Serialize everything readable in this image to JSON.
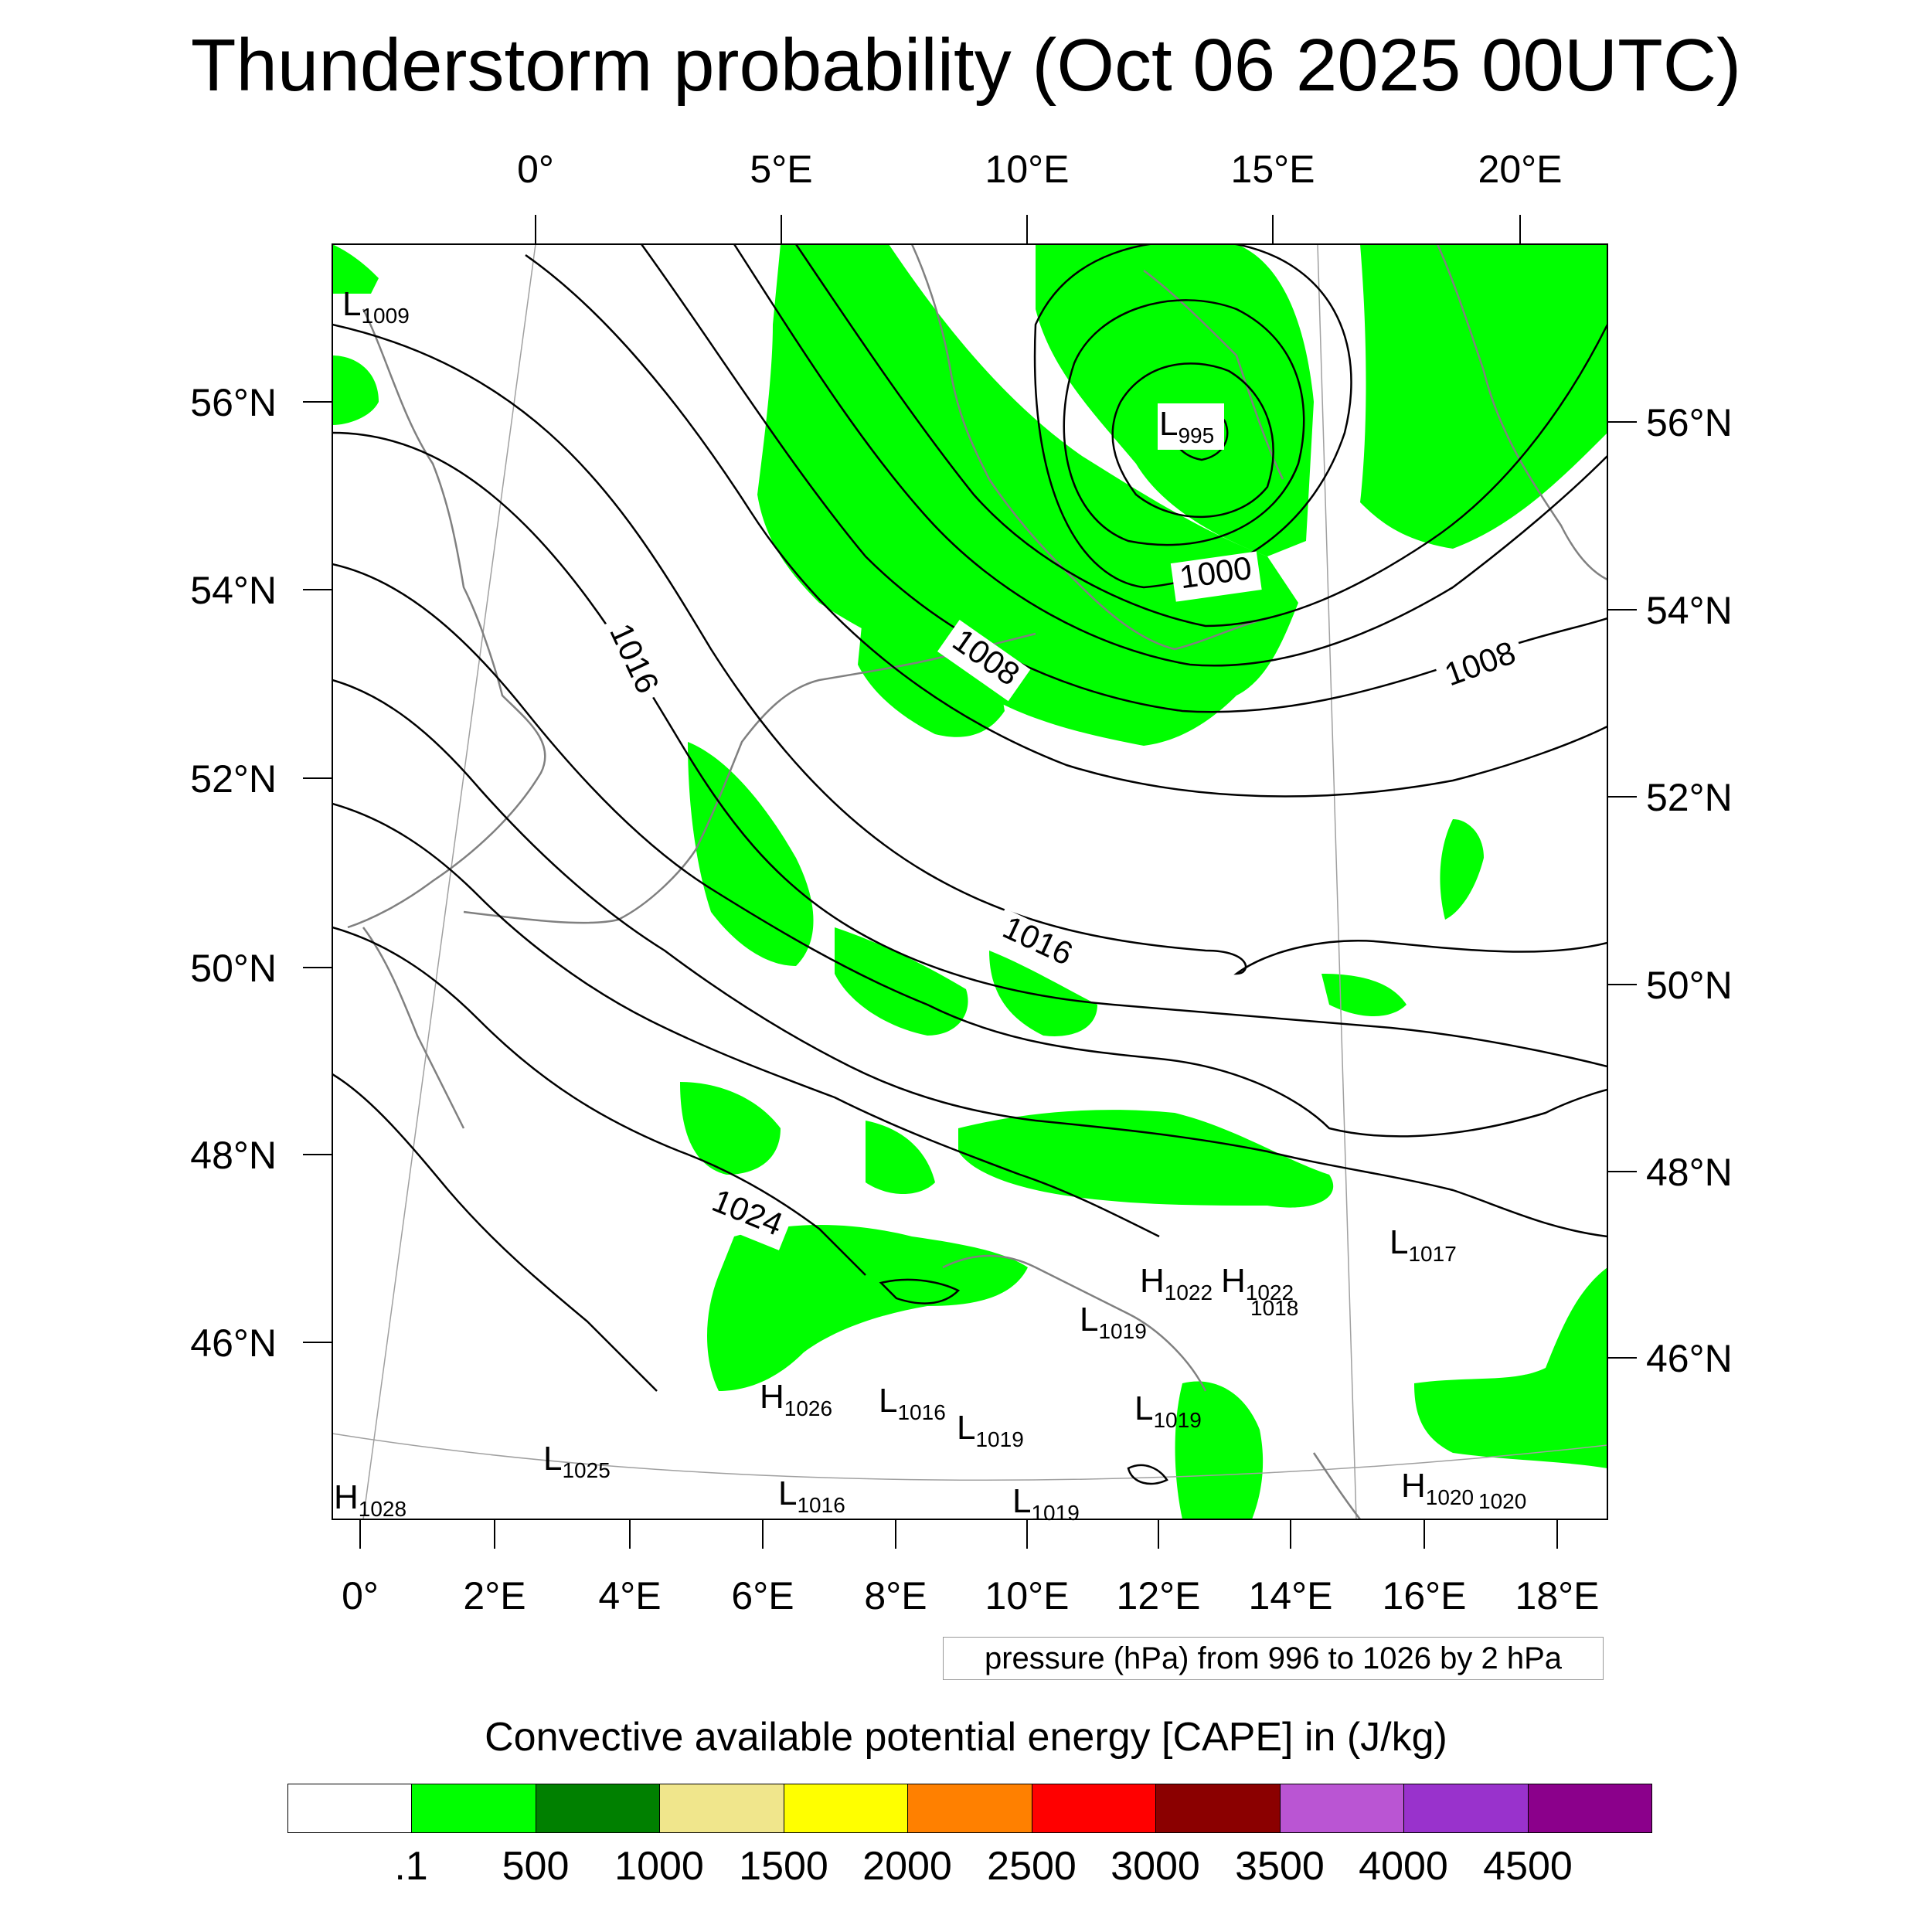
{
  "title": "Thunderstorm probability (Oct 06 2025 00UTC)",
  "top_lon_labels": [
    "0°",
    "5°E",
    "10°E",
    "15°E",
    "20°E"
  ],
  "bottom_lon_labels": [
    "0°",
    "2°E",
    "4°E",
    "6°E",
    "8°E",
    "10°E",
    "12°E",
    "14°E",
    "16°E",
    "18°E"
  ],
  "left_lat_labels": [
    "56°N",
    "54°N",
    "52°N",
    "50°N",
    "48°N",
    "46°N"
  ],
  "right_lat_labels": [
    "56°N",
    "54°N",
    "52°N",
    "50°N",
    "48°N",
    "46°N"
  ],
  "isobar_labels": [
    "1000",
    "1008",
    "1008",
    "1016",
    "1016",
    "1024"
  ],
  "pressure_systems": [
    {
      "type": "L",
      "value": "1009"
    },
    {
      "type": "L",
      "value": "995"
    },
    {
      "type": "H",
      "value": "1022"
    },
    {
      "type": "H",
      "value": "1022"
    },
    {
      "type": "L",
      "value": "1017"
    },
    {
      "type": "L",
      "value": "1019"
    },
    {
      "type": "H",
      "value": "1026"
    },
    {
      "type": "L",
      "value": "1016"
    },
    {
      "type": "L",
      "value": "1019"
    },
    {
      "type": "L",
      "value": "1019"
    },
    {
      "type": "L",
      "value": "1025"
    },
    {
      "type": "L",
      "value": "1016"
    },
    {
      "type": "L",
      "value": "1019"
    },
    {
      "type": "H",
      "value": "1020"
    },
    {
      "type": "H",
      "value": "1028"
    }
  ],
  "extra_value_labels": [
    "1020",
    "1018"
  ],
  "contour_info": "pressure (hPa) from 996 to 1026 by 2 hPa",
  "colorbar": {
    "title": "Convective available potential energy [CAPE] in (J/kg)",
    "colors": [
      "#ffffff",
      "#00ff00",
      "#008000",
      "#f0e68c",
      "#ffff00",
      "#ff8000",
      "#ff0000",
      "#8b0000",
      "#ba55d3",
      "#9932cc",
      "#8b008b"
    ],
    "labels": [
      ".1",
      "500",
      "1000",
      "1500",
      "2000",
      "2500",
      "3000",
      "3500",
      "4000",
      "4500"
    ]
  },
  "colors": {
    "cape_low": "#00ff00",
    "isobar": "#000000",
    "coastline": "#808080",
    "graticule": "#a0a0a0"
  }
}
